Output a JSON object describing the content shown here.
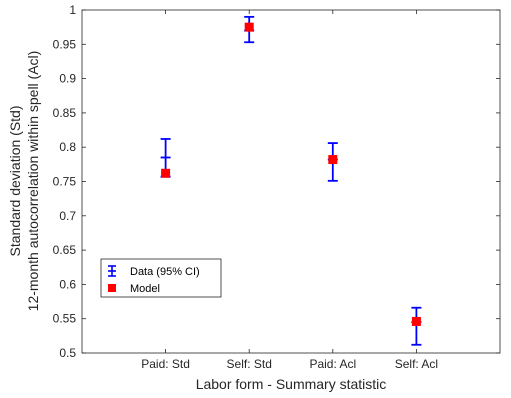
{
  "chart_data": {
    "type": "scatter",
    "xlabel": "Labor form - Summary statistic",
    "ylabel": [
      "Standard deviation (Std)",
      "12-month autocorrelation within spell (Acl)"
    ],
    "categories": [
      "Paid: Std",
      "Self: Std",
      "Paid: Acl",
      "Self: Acl"
    ],
    "ylim": [
      0.5,
      1.0
    ],
    "yticks": [
      0.5,
      0.55,
      0.6,
      0.65,
      0.7,
      0.75,
      0.8,
      0.85,
      0.9,
      0.95,
      1
    ],
    "ytick_labels": [
      "0.5",
      "0.55",
      "0.6",
      "0.65",
      "0.7",
      "0.75",
      "0.8",
      "0.85",
      "0.9",
      "0.95",
      "1"
    ],
    "grid": false,
    "legend_position": "bottom-left",
    "series": [
      {
        "name": "Data (95% CI)",
        "kind": "errorbar",
        "color": "#0000ff",
        "values": [
          0.785,
          0.97,
          0.782,
          0.545
        ],
        "lower": [
          0.757,
          0.953,
          0.751,
          0.512
        ],
        "upper": [
          0.812,
          0.99,
          0.806,
          0.566
        ]
      },
      {
        "name": "Model",
        "kind": "marker",
        "color": "#ff0000",
        "values": [
          0.762,
          0.975,
          0.782,
          0.546
        ]
      }
    ]
  }
}
